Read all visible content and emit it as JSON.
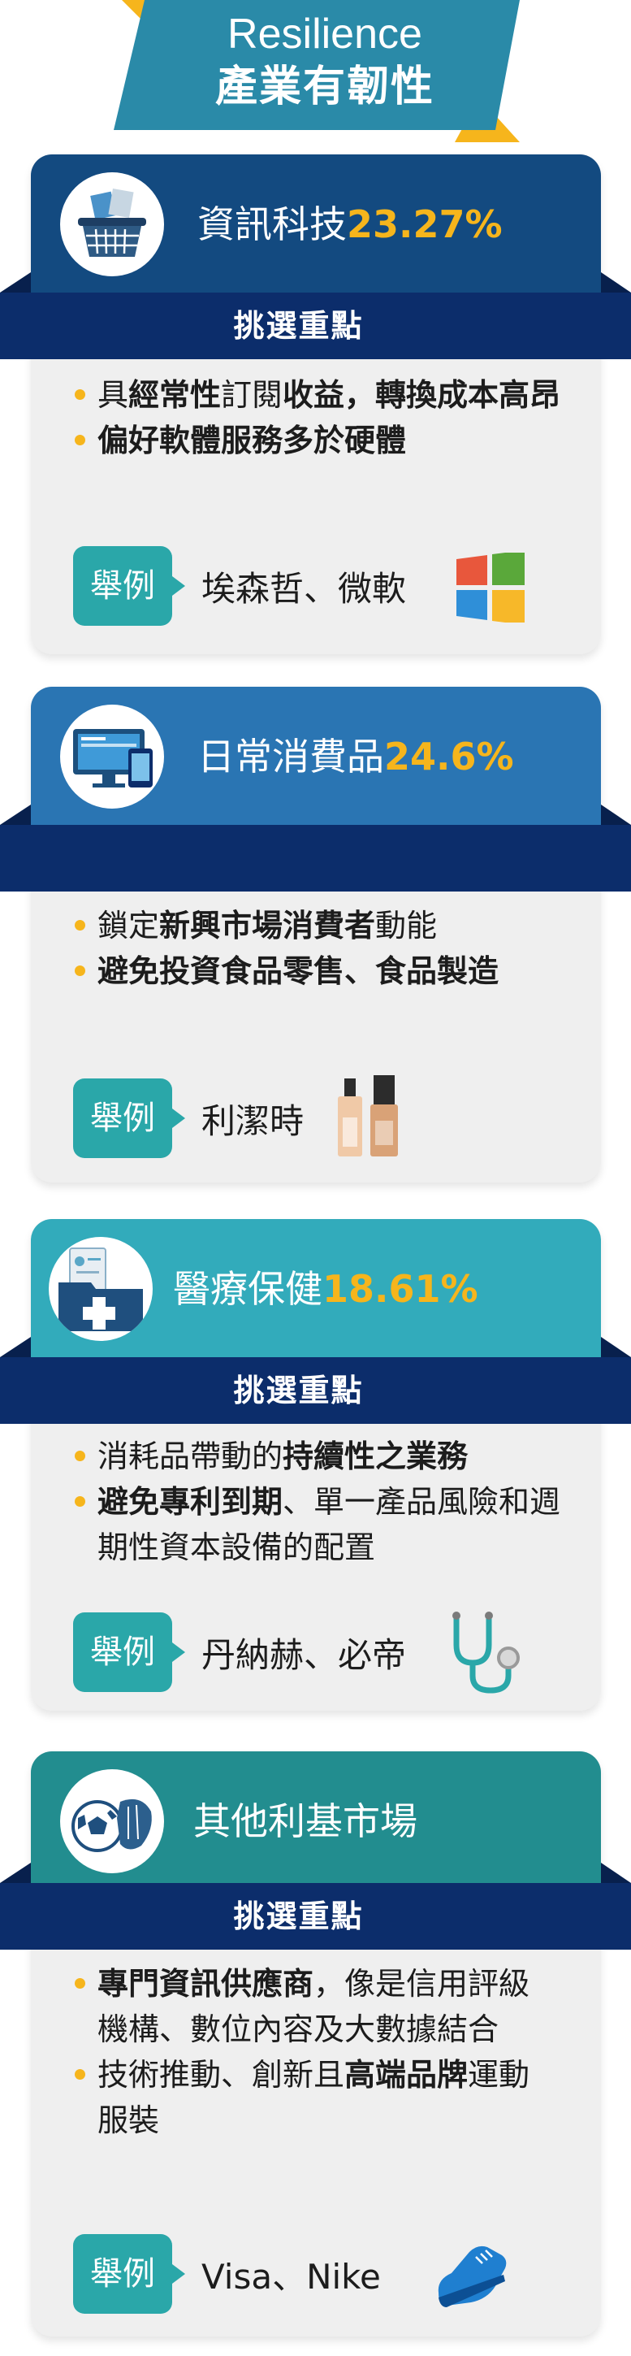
{
  "header": {
    "title": "Resilience",
    "subtitle": "產業有韌性"
  },
  "labels": {
    "ribbon": "挑選重點",
    "example_badge": "舉例"
  },
  "sections": [
    {
      "name": "資訊科技",
      "percent": "23.27%",
      "icon": "shopping-basket-icon",
      "bullets": [
        {
          "parts": [
            {
              "t": "具"
            },
            {
              "t": "經常性",
              "b": true
            },
            {
              "t": "訂閱"
            },
            {
              "t": "收益，轉換成本高昂",
              "b": true
            }
          ]
        },
        {
          "parts": [
            {
              "t": "偏好軟體服務多於硬體",
              "b": true
            }
          ]
        }
      ],
      "example": "埃森哲、微軟",
      "example_icon": "windows-logo-icon"
    },
    {
      "name": "日常消費品",
      "percent": "24.6%",
      "icon": "devices-icon",
      "bullets": [
        {
          "parts": [
            {
              "t": "鎖定"
            },
            {
              "t": "新興市場消費者",
              "b": true
            },
            {
              "t": "動能"
            }
          ]
        },
        {
          "parts": [
            {
              "t": "避免投資食品零售、食品製造",
              "b": true
            }
          ]
        }
      ],
      "example": "利潔時",
      "example_icon": "cosmetic-bottles-icon"
    },
    {
      "name": "醫療保健",
      "percent": "18.61%",
      "icon": "medical-folder-icon",
      "bullets": [
        {
          "parts": [
            {
              "t": "消耗品帶動的"
            },
            {
              "t": "持續性之業務",
              "b": true
            }
          ]
        },
        {
          "parts": [
            {
              "t": "避免專利到期",
              "b": true
            },
            {
              "t": "、單一產品風險和週期性資本設備的配置"
            }
          ]
        }
      ],
      "example": "丹納赫、必帝",
      "example_icon": "stethoscope-icon"
    },
    {
      "name": "其他利基市場",
      "percent": "",
      "icon": "sports-ball-glove-icon",
      "bullets": [
        {
          "parts": [
            {
              "t": "專門資訊供應商",
              "b": true
            },
            {
              "t": "，像是信用評級機構、數位內容及大數據結合"
            }
          ]
        },
        {
          "parts": [
            {
              "t": "技術推動、創新且"
            },
            {
              "t": "高端品牌",
              "b": true
            },
            {
              "t": "運動服裝"
            }
          ]
        }
      ],
      "example": "Visa、Nike",
      "example_icon": "running-shoe-icon"
    }
  ],
  "colors": {
    "ribbon": "#0c2d6b",
    "accent": "#f6b51c",
    "badge": "#2aa7a9",
    "section_heads": [
      "#134a80",
      "#2a75b3",
      "#32abbb",
      "#228d8f"
    ]
  }
}
